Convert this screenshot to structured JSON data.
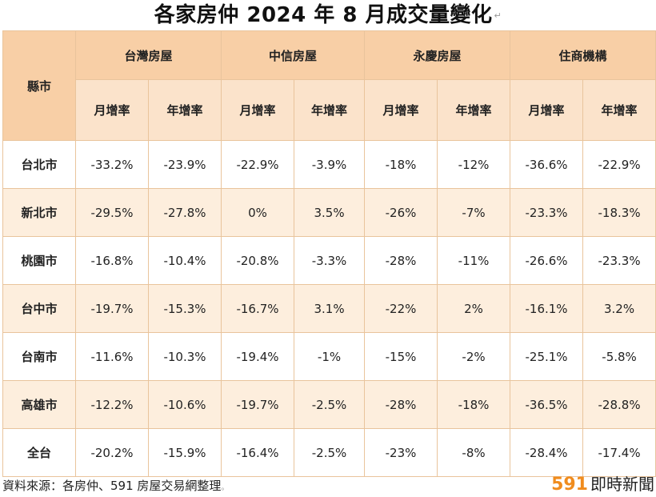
{
  "title": "各家房仲 2024 年 8 月成交量變化",
  "title_mark": "↵",
  "table": {
    "corner_label": "縣市",
    "groups": [
      "台灣房屋",
      "中信房屋",
      "永慶房屋",
      "住商機構"
    ],
    "sub_headers": [
      "月增率",
      "年增率",
      "月增率",
      "年增率",
      "月增率",
      "年增率",
      "月增率",
      "年增率"
    ],
    "rows": [
      {
        "city": "台北市",
        "values": [
          "-33.2%",
          "-23.9%",
          "-22.9%",
          "-3.9%",
          "-18%",
          "-12%",
          "-36.6%",
          "-22.9%"
        ]
      },
      {
        "city": "新北市",
        "values": [
          "-29.5%",
          "-27.8%",
          "0%",
          "3.5%",
          "-26%",
          "-7%",
          "-23.3%",
          "-18.3%"
        ]
      },
      {
        "city": "桃園市",
        "values": [
          "-16.8%",
          "-10.4%",
          "-20.8%",
          "-3.3%",
          "-28%",
          "-11%",
          "-26.6%",
          "-23.3%"
        ]
      },
      {
        "city": "台中市",
        "values": [
          "-19.7%",
          "-15.3%",
          "-16.7%",
          "3.1%",
          "-22%",
          "2%",
          "-16.1%",
          "3.2%"
        ]
      },
      {
        "city": "台南市",
        "values": [
          "-11.6%",
          "-10.3%",
          "-19.4%",
          "-1%",
          "-15%",
          "-2%",
          "-25.1%",
          "-5.8%"
        ]
      },
      {
        "city": "高雄市",
        "values": [
          "-12.2%",
          "-10.6%",
          "-19.7%",
          "-2.5%",
          "-28%",
          "-18%",
          "-36.5%",
          "-28.8%"
        ]
      },
      {
        "city": "全台",
        "values": [
          "-20.2%",
          "-15.9%",
          "-16.4%",
          "-2.5%",
          "-23%",
          "-8%",
          "-28.4%",
          "-17.4%"
        ]
      }
    ]
  },
  "footer": {
    "source": "資料來源：各房仲、591 房屋交易網整理",
    "source_mark": "。",
    "logo_number": "591",
    "logo_text": "即時新聞"
  },
  "colors": {
    "header_orange": "#f8cfa6",
    "subheader_orange": "#fbe3cb",
    "row_alt": "#fdeedd",
    "border": "#e9c49c",
    "logo_accent": "#f08c1e"
  }
}
